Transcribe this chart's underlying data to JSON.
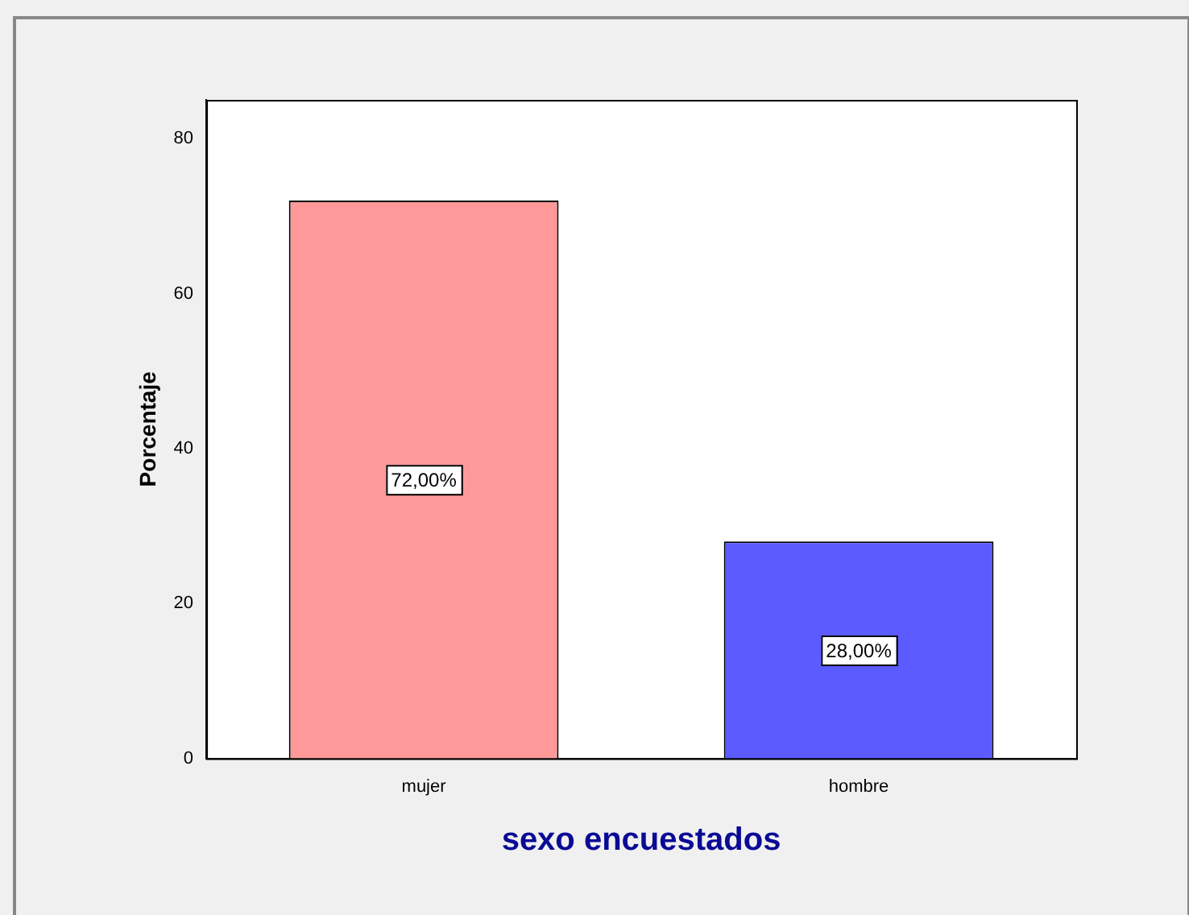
{
  "chart_data": {
    "type": "bar",
    "xlabel": "sexo encuestados",
    "ylabel": "Porcentaje",
    "categories": [
      "mujer",
      "hombre"
    ],
    "values": [
      72,
      28
    ],
    "colors": [
      "#ff9999",
      "#5b5bff"
    ],
    "value_labels": [
      "72,00%",
      "28,00%"
    ],
    "ylim": [
      0,
      85
    ],
    "yticks": [
      0,
      20,
      40,
      60,
      80
    ],
    "grid": false,
    "legend": false
  }
}
